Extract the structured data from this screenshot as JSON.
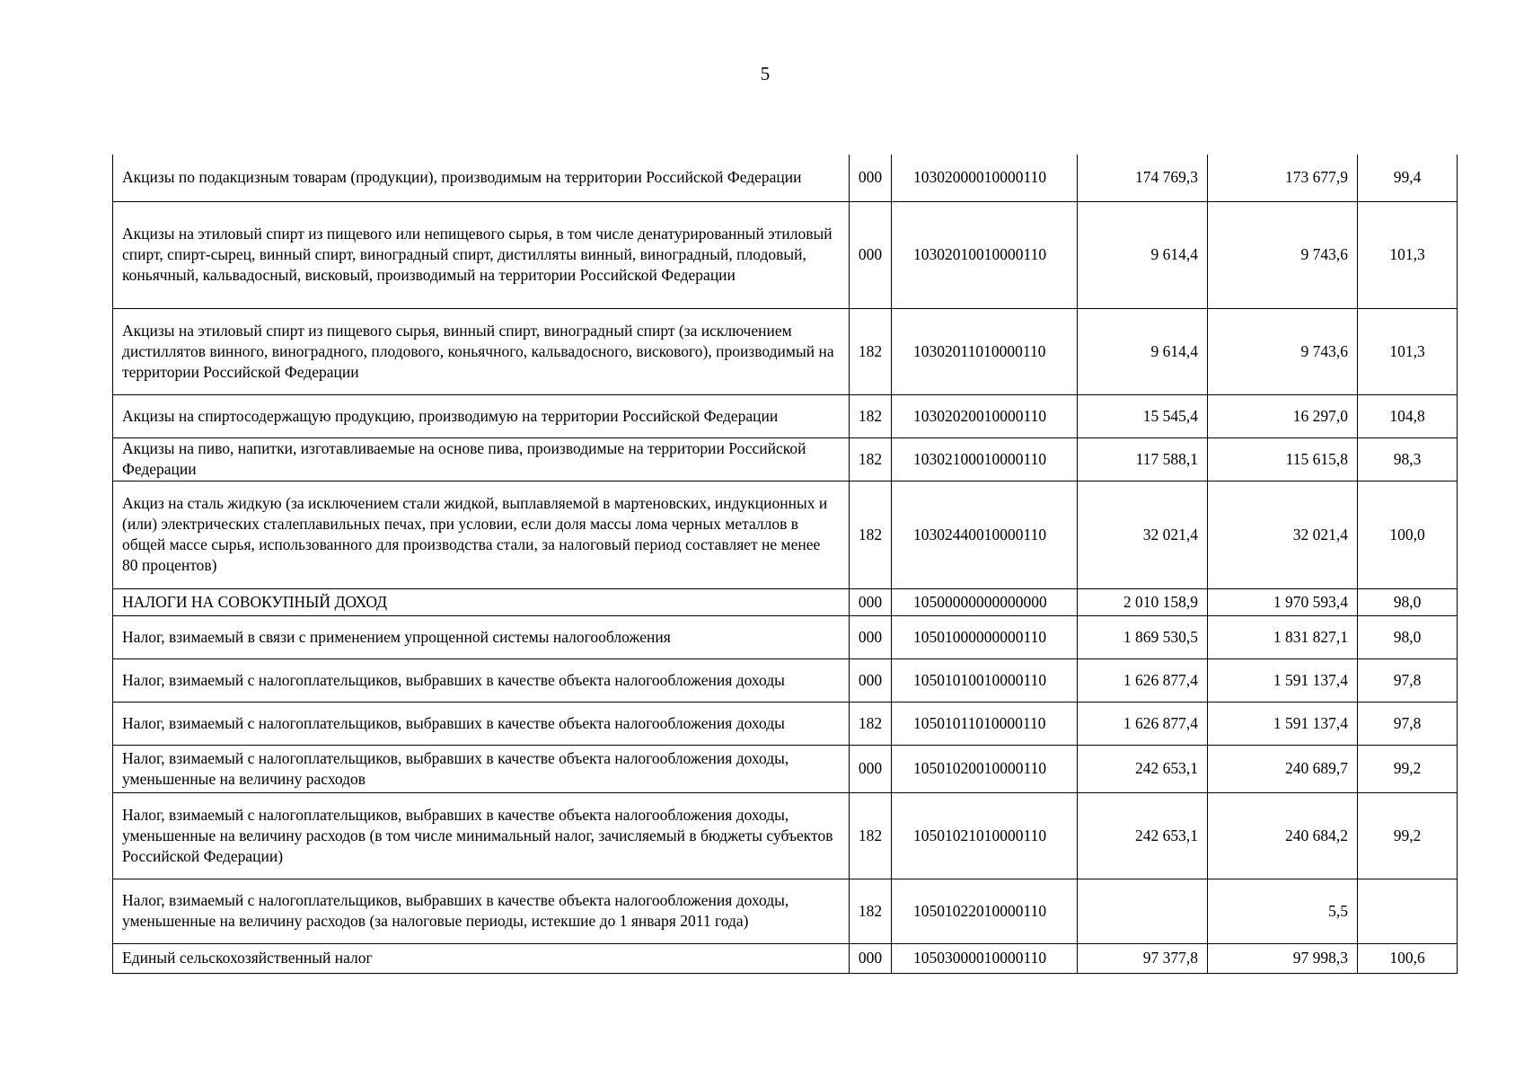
{
  "page_number": "5",
  "rows": [
    {
      "name": "Акцизы по подакцизным товарам (продукции), производимым на территории Российской Федерации",
      "admin": "000",
      "code": "10302000010000110",
      "plan": "174 769,3",
      "actual": "173 677,9",
      "percent": "99,4"
    },
    {
      "name": "Акцизы на этиловый спирт из пищевого или непищевого сырья, в том числе денатурированный этиловый спирт, спирт-сырец, винный спирт, виноградный спирт, дистилляты винный, виноградный, плодовый, коньячный, кальвадосный, висковый, производимый на территории Российской Федерации",
      "admin": "000",
      "code": "10302010010000110",
      "plan": "9 614,4",
      "actual": "9 743,6",
      "percent": "101,3"
    },
    {
      "name": "Акцизы на этиловый спирт из пищевого сырья, винный спирт, виноградный спирт (за исключением дистиллятов винного, виноградного, плодового, коньячного, кальвадосного, вискового), производимый на территории Российской Федерации",
      "admin": "182",
      "code": "10302011010000110",
      "plan": "9 614,4",
      "actual": "9 743,6",
      "percent": "101,3"
    },
    {
      "name": "Акцизы на спиртосодержащую продукцию, производимую на территории Российской Федерации",
      "admin": "182",
      "code": "10302020010000110",
      "plan": "15 545,4",
      "actual": "16 297,0",
      "percent": "104,8"
    },
    {
      "name": "Акцизы на пиво, напитки, изготавливаемые на основе пива, производимые на территории Российской Федерации",
      "admin": "182",
      "code": "10302100010000110",
      "plan": "117 588,1",
      "actual": "115 615,8",
      "percent": "98,3"
    },
    {
      "name": "Акциз на сталь жидкую (за исключением стали жидкой, выплавляемой в мартеновских, индукционных и (или) электрических сталеплавильных печах, при условии, если доля массы лома черных металлов в общей массе сырья, использованного для производства стали, за налоговый период составляет не менее 80 процентов)",
      "admin": "182",
      "code": "10302440010000110",
      "plan": "32 021,4",
      "actual": "32 021,4",
      "percent": "100,0"
    },
    {
      "name": "НАЛОГИ НА СОВОКУПНЫЙ ДОХОД",
      "admin": "000",
      "code": "10500000000000000",
      "plan": "2 010 158,9",
      "actual": "1 970 593,4",
      "percent": "98,0"
    },
    {
      "name": "Налог, взимаемый в связи с применением упрощенной системы налогообложения",
      "admin": "000",
      "code": "10501000000000110",
      "plan": "1 869 530,5",
      "actual": "1 831 827,1",
      "percent": "98,0"
    },
    {
      "name": "Налог, взимаемый с налогоплательщиков, выбравших в качестве объекта налогообложения доходы",
      "admin": "000",
      "code": "10501010010000110",
      "plan": "1 626 877,4",
      "actual": "1 591 137,4",
      "percent": "97,8"
    },
    {
      "name": "Налог, взимаемый с налогоплательщиков, выбравших в качестве объекта налогообложения доходы",
      "admin": "182",
      "code": "10501011010000110",
      "plan": "1 626 877,4",
      "actual": "1 591 137,4",
      "percent": "97,8"
    },
    {
      "name": "Налог, взимаемый с налогоплательщиков, выбравших в качестве объекта налогообложения доходы, уменьшенные на величину расходов",
      "admin": "000",
      "code": "10501020010000110",
      "plan": "242 653,1",
      "actual": "240 689,7",
      "percent": "99,2"
    },
    {
      "name": "Налог, взимаемый с налогоплательщиков, выбравших в качестве объекта налогообложения доходы, уменьшенные на величину расходов (в том числе минимальный налог, зачисляемый в бюджеты субъектов Российской Федерации)",
      "admin": "182",
      "code": "10501021010000110",
      "plan": "242 653,1",
      "actual": "240 684,2",
      "percent": "99,2"
    },
    {
      "name": "Налог, взимаемый с налогоплательщиков, выбравших в качестве объекта налогообложения доходы, уменьшенные на величину расходов (за налоговые периоды, истекшие до 1 января 2011 года)",
      "admin": "182",
      "code": "10501022010000110",
      "plan": "",
      "actual": "5,5",
      "percent": ""
    },
    {
      "name": "Единый сельскохозяйственный налог",
      "admin": "000",
      "code": "10503000010000110",
      "plan": "97 377,8",
      "actual": "97 998,3",
      "percent": "100,6"
    }
  ]
}
